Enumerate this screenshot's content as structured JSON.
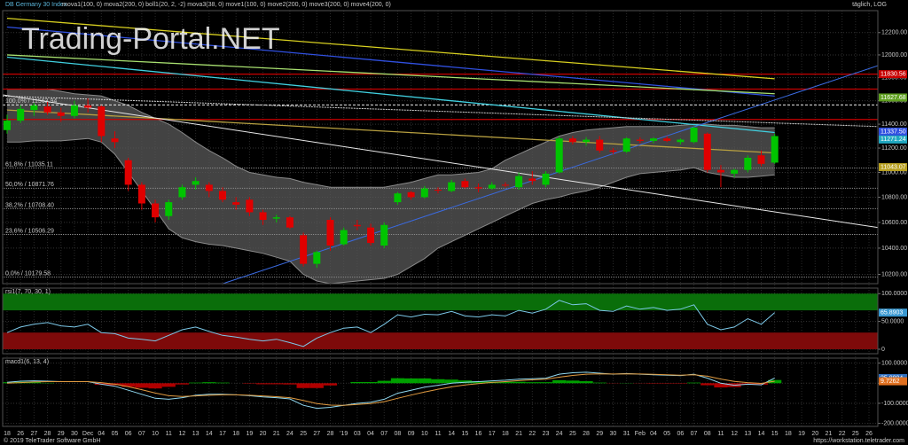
{
  "chart_data": [
    {
      "type": "candlestick",
      "title": "DB Germany 30 Index",
      "indicators": "mova1(100, 0) mova2(200, 0) boll1(20, 2, -2) mova3(38, 0) move1(100, 0) move2(200, 0) move3(200, 0) move4(200, 0)",
      "scale_note": "täglich, LOG",
      "log": true,
      "grid": true,
      "ylim": [
        10130,
        12400
      ],
      "yticks": [
        {
          "value": 10200,
          "label": "10200.00"
        },
        {
          "value": 10400,
          "label": "10400.00"
        },
        {
          "value": 10600,
          "label": "10600.00"
        },
        {
          "value": 10800,
          "label": "10800.00"
        },
        {
          "value": 11000,
          "label": "11000.00"
        },
        {
          "value": 11200,
          "label": "11200.00"
        },
        {
          "value": 11400,
          "label": "11400.00"
        },
        {
          "value": 11600,
          "label": "11600.00"
        },
        {
          "value": 11800,
          "label": "11800.00"
        },
        {
          "value": 12000,
          "label": "12000.00"
        },
        {
          "value": 12200,
          "label": "12200.00"
        }
      ],
      "categories": [
        "18",
        "26",
        "27",
        "28",
        "29",
        "30",
        "Dec",
        "04",
        "05",
        "06",
        "07",
        "10",
        "11",
        "12",
        "13",
        "14",
        "17",
        "18",
        "19",
        "20",
        "21",
        "24",
        "25",
        "27",
        "28",
        "'19",
        "03",
        "04",
        "07",
        "08",
        "09",
        "10",
        "11",
        "14",
        "15",
        "16",
        "17",
        "18",
        "21",
        "22",
        "23",
        "24",
        "25",
        "28",
        "29",
        "30",
        "31",
        "Feb",
        "04",
        "05",
        "06",
        "07",
        "08",
        "11",
        "12",
        "13",
        "14",
        "15",
        "18",
        "19",
        "20",
        "21",
        "22",
        "25",
        "26"
      ],
      "open": [
        11350,
        11430,
        11520,
        11550,
        11500,
        11470,
        11560,
        11550,
        11280,
        11100,
        10900,
        10750,
        10650,
        10800,
        10900,
        10900,
        10850,
        10760,
        10780,
        10680,
        10630,
        10640,
        10500,
        10280,
        10620,
        10430,
        10580,
        10560,
        10420,
        10760,
        10840,
        10800,
        10860,
        10850,
        10930,
        10880,
        10870,
        10900,
        10880,
        10950,
        10900,
        11000,
        11280,
        11250,
        11270,
        11180,
        11170,
        11270,
        11260,
        11280,
        11250,
        11250,
        11320,
        11020,
        10990,
        11020,
        11140,
        11080,
        null,
        null,
        null,
        null,
        null,
        null,
        null
      ],
      "high": [
        11480,
        11560,
        11580,
        11590,
        11540,
        11600,
        11620,
        11560,
        11340,
        11120,
        10920,
        10780,
        10780,
        10900,
        10960,
        10920,
        10880,
        10800,
        10800,
        10700,
        10660,
        10650,
        10520,
        10380,
        10640,
        10560,
        10620,
        10590,
        10600,
        10840,
        10850,
        10890,
        10880,
        10940,
        10950,
        10910,
        10920,
        10920,
        11000,
        11010,
        11010,
        11300,
        11300,
        11290,
        11300,
        11200,
        11290,
        11290,
        11290,
        11300,
        11280,
        11380,
        11330,
        11060,
        11030,
        11140,
        11180,
        11320,
        null,
        null,
        null,
        null,
        null,
        null,
        null
      ],
      "low": [
        11320,
        11410,
        11470,
        11480,
        11420,
        11450,
        11500,
        11250,
        11200,
        10850,
        10700,
        10600,
        10620,
        10780,
        10860,
        10800,
        10760,
        10700,
        10650,
        10580,
        10600,
        10550,
        10260,
        10250,
        10380,
        10420,
        10540,
        10420,
        10400,
        10740,
        10780,
        10790,
        10830,
        10840,
        10870,
        10840,
        10860,
        10880,
        10860,
        10900,
        10880,
        10990,
        11230,
        11220,
        11160,
        11150,
        11160,
        11240,
        11240,
        11250,
        11230,
        11240,
        11000,
        10880,
        10960,
        11000,
        11050,
        11070,
        null,
        null,
        null,
        null,
        null,
        null,
        null
      ],
      "close": [
        11430,
        11530,
        11560,
        11500,
        11470,
        11560,
        11540,
        11300,
        11250,
        10900,
        10750,
        10640,
        10760,
        10880,
        10930,
        10850,
        10780,
        10740,
        10680,
        10620,
        10640,
        10560,
        10280,
        10370,
        10420,
        10540,
        10570,
        10440,
        10580,
        10830,
        10800,
        10870,
        10855,
        10920,
        10880,
        10870,
        10900,
        10895,
        10970,
        10930,
        10990,
        11280,
        11250,
        11270,
        11180,
        11170,
        11280,
        11260,
        11280,
        11260,
        11270,
        11370,
        11020,
        11000,
        11020,
        11120,
        11070,
        11300,
        null,
        null,
        null,
        null,
        null,
        null,
        null
      ],
      "up_color": "#00c400",
      "down_color": "#e00000",
      "bollinger": {
        "color": "#8a8a8a",
        "fill": "#5a5a5a",
        "upper": [
          11700,
          11700,
          11700,
          11700,
          11680,
          11660,
          11650,
          11640,
          11600,
          11560,
          11500,
          11450,
          11400,
          11330,
          11250,
          11180,
          11120,
          11050,
          11000,
          10980,
          10960,
          10950,
          10920,
          10900,
          10880,
          10880,
          10880,
          10880,
          10880,
          10900,
          10920,
          10950,
          10980,
          10980,
          10990,
          11000,
          11030,
          11100,
          11150,
          11200,
          11250,
          11300,
          11330,
          11350,
          11360,
          11370,
          11380,
          11380,
          11380,
          11380,
          11390,
          11400,
          11400,
          11390,
          11390,
          11380,
          11370,
          11370,
          null,
          null,
          null,
          null,
          null,
          null,
          null
        ],
        "lower": [
          11250,
          11250,
          11260,
          11260,
          11260,
          11270,
          11280,
          11250,
          11150,
          11000,
          10850,
          10700,
          10550,
          10480,
          10450,
          10430,
          10420,
          10400,
          10380,
          10360,
          10330,
          10300,
          10200,
          10150,
          10130,
          10140,
          10150,
          10160,
          10170,
          10200,
          10260,
          10320,
          10400,
          10450,
          10500,
          10550,
          10600,
          10650,
          10700,
          10750,
          10780,
          10800,
          10830,
          10850,
          10880,
          10920,
          10960,
          10990,
          11000,
          11010,
          11020,
          11040,
          11000,
          10980,
          10960,
          10960,
          10970,
          10980,
          null,
          null,
          null,
          null,
          null,
          null,
          null
        ]
      },
      "moving_averages": [
        {
          "color": "#d8d020",
          "values": [
            12330,
            11790
          ]
        },
        {
          "color": "#3050e0",
          "values": [
            12250,
            11640
          ]
        },
        {
          "color": "#a8e070",
          "values": [
            12000,
            11660
          ]
        },
        {
          "color": "#40d0e0",
          "values": [
            11980,
            11330
          ]
        },
        {
          "color": "#b8a040",
          "values": [
            11520,
            11160
          ]
        }
      ],
      "trend_lines": [
        {
          "color": "#e8e8e8",
          "values": [
            11650,
            10560
          ]
        },
        {
          "color": "#3a6ae0",
          "values": [
            9595,
            11905
          ]
        },
        {
          "color": "#d0d0d0",
          "values": [
            11640,
            11380
          ]
        }
      ],
      "levels": [
        {
          "value": 11830.56,
          "color": "#c80000"
        },
        {
          "value": 11700,
          "color": "#c80000"
        },
        {
          "value": 11440,
          "color": "#c80000"
        }
      ],
      "fibonacci": [
        {
          "label": "100,0% / 11563.94",
          "value": 11563.94
        },
        {
          "label": "61,8% / 11035.11",
          "value": 11035.11
        },
        {
          "label": "50,0% / 10871.76",
          "value": 10871.76
        },
        {
          "label": "38,2% / 10708.40",
          "value": 10708.4
        },
        {
          "label": "23,6% / 10506.29",
          "value": 10506.29
        },
        {
          "label": "0,0% / 10179.58",
          "value": 10179.58
        }
      ],
      "price_tags": [
        {
          "value": 11830.56,
          "label": "11830.56",
          "color": "#c80000"
        },
        {
          "value": 11627.68,
          "label": "11627.68",
          "color": "#60a020"
        },
        {
          "value": 11337.5,
          "label": "11337.50",
          "color": "#3050e0"
        },
        {
          "value": 11271.24,
          "label": "11271.24",
          "color": "#20a8c0"
        },
        {
          "value": 11043.07,
          "label": "11043.07",
          "color": "#b8a020"
        }
      ]
    },
    {
      "type": "line",
      "title": "rsi1(7, 70, 30, 1)",
      "ylim": [
        -8,
        110
      ],
      "yticks": [
        {
          "value": 100,
          "label": "100.0000"
        },
        {
          "value": 50,
          "label": "50.0000"
        },
        0
      ],
      "zones": [
        {
          "from": 70,
          "to": 100,
          "color": "#0a6e0a"
        },
        {
          "from": 0,
          "to": 30,
          "color": "#7e0a0a"
        }
      ],
      "series": [
        {
          "color": "#7cc8e8",
          "values": [
            30,
            40,
            45,
            48,
            42,
            40,
            45,
            30,
            28,
            20,
            18,
            15,
            25,
            35,
            40,
            32,
            25,
            22,
            18,
            15,
            18,
            12,
            5,
            20,
            30,
            38,
            40,
            30,
            45,
            62,
            58,
            63,
            62,
            68,
            60,
            58,
            62,
            60,
            70,
            65,
            72,
            88,
            80,
            82,
            70,
            68,
            78,
            72,
            75,
            70,
            72,
            80,
            45,
            35,
            40,
            55,
            45,
            66,
            null,
            null,
            null,
            null,
            null,
            null,
            null
          ]
        }
      ],
      "value_tags": [
        {
          "value": 65.8903,
          "label": "65.8903",
          "color": "#3a98d0"
        }
      ]
    },
    {
      "type": "macd",
      "title": "macd1(6, 13, 4)",
      "ylim": [
        -215,
        125
      ],
      "yticks": [
        {
          "value": 100,
          "label": "100.0000"
        },
        0,
        {
          "value": -100,
          "label": "-100.0000"
        },
        {
          "value": -200,
          "label": "-200.0000"
        }
      ],
      "histogram": {
        "up_color": "#00a000",
        "down_color": "#b00000",
        "values": [
          5,
          7,
          6,
          2,
          0,
          0,
          0,
          -8,
          -10,
          -18,
          -23,
          -26,
          -18,
          -6,
          3,
          5,
          3,
          0,
          -2,
          -5,
          -5,
          -6,
          -24,
          -24,
          -11,
          0,
          6,
          6,
          12,
          25,
          24,
          24,
          20,
          18,
          14,
          10,
          8,
          7,
          7,
          5,
          5,
          15,
          13,
          10,
          3,
          -1,
          1,
          -1,
          -2,
          -2,
          -2,
          3,
          -10,
          -21,
          -19,
          -8,
          -7,
          16,
          null,
          null,
          null,
          null,
          null,
          null,
          null
        ]
      },
      "series": [
        {
          "color": "#90d8f0",
          "values": [
            5,
            10,
            12,
            10,
            8,
            8,
            8,
            -5,
            -15,
            -35,
            -55,
            -75,
            -80,
            -72,
            -60,
            -55,
            -55,
            -58,
            -62,
            -68,
            -72,
            -78,
            -110,
            -125,
            -120,
            -110,
            -100,
            -95,
            -80,
            -50,
            -35,
            -20,
            -10,
            0,
            5,
            8,
            12,
            15,
            20,
            22,
            25,
            45,
            52,
            55,
            50,
            45,
            48,
            45,
            42,
            40,
            38,
            45,
            25,
            0,
            -10,
            -5,
            -8,
            26,
            null,
            null,
            null,
            null,
            null,
            null,
            null
          ]
        },
        {
          "color": "#e09a40",
          "values": [
            0,
            3,
            6,
            8,
            8,
            8,
            8,
            3,
            -5,
            -17,
            -32,
            -49,
            -62,
            -66,
            -63,
            -60,
            -58,
            -58,
            -60,
            -63,
            -67,
            -72,
            -86,
            -101,
            -109,
            -110,
            -106,
            -101,
            -92,
            -75,
            -59,
            -44,
            -30,
            -18,
            -9,
            -2,
            4,
            8,
            13,
            17,
            20,
            30,
            39,
            45,
            47,
            46,
            47,
            46,
            44,
            42,
            40,
            42,
            35,
            21,
            9,
            3,
            -1,
            10,
            null,
            null,
            null,
            null,
            null,
            null,
            null
          ]
        }
      ],
      "value_tags": [
        {
          "value": 25.8894,
          "label": "25.8894",
          "color": "#3070c0"
        },
        {
          "value": 9.7262,
          "label": "9.7262",
          "color": "#e07020"
        }
      ]
    }
  ],
  "watermark": "Trading-Portal.NET",
  "footer": {
    "copyright": "© 2019 TeleTrader Software GmbH",
    "url": "https://workstation.teletrader.com"
  }
}
